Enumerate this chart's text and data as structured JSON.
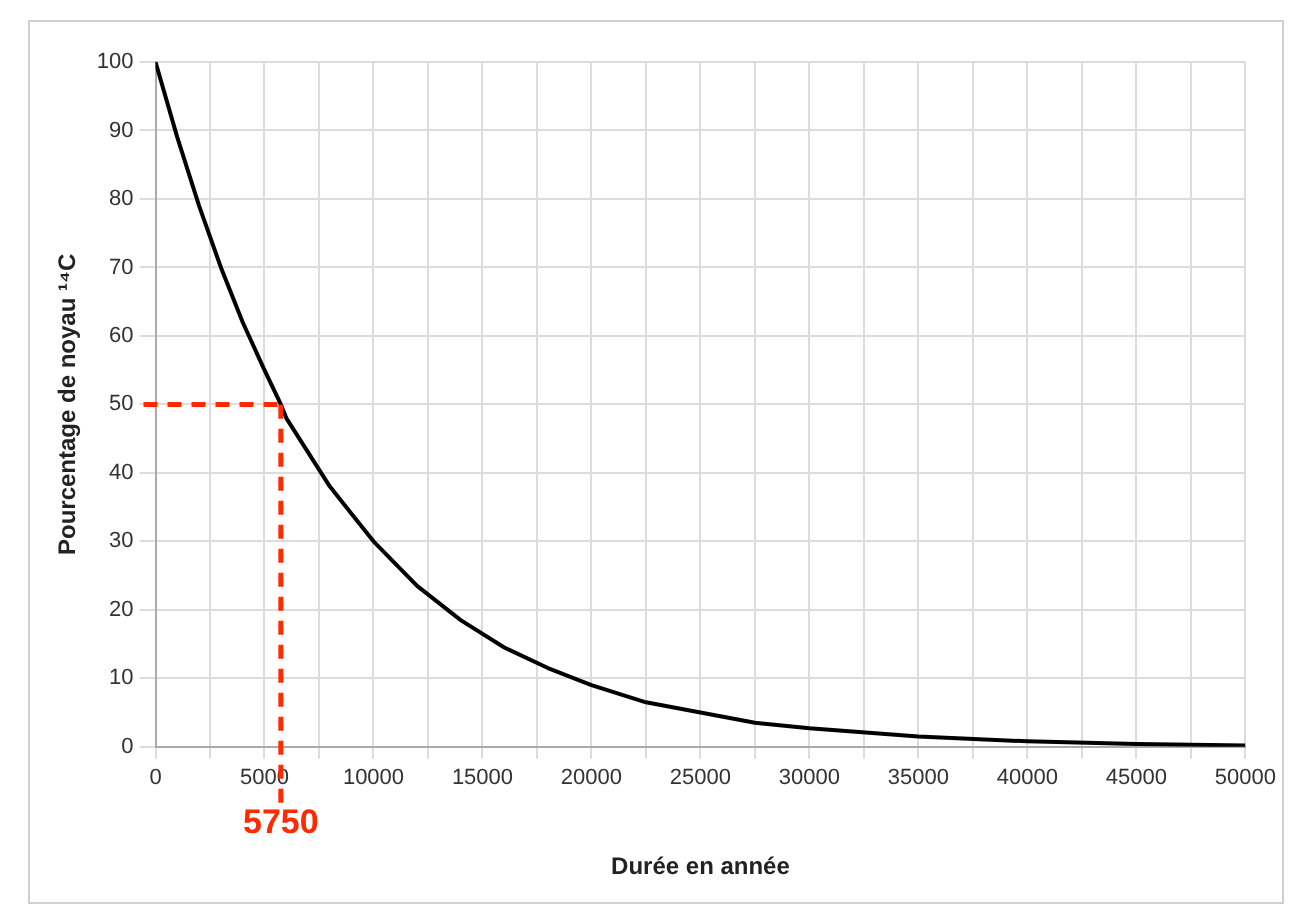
{
  "chart_data": {
    "type": "line",
    "xlabel": "Durée en année",
    "ylabel": "Pourcentage de noyau ¹⁴C",
    "x": [
      0,
      1000,
      2000,
      3000,
      4000,
      5000,
      5750,
      6000,
      7000,
      8000,
      9000,
      10000,
      12000,
      14000,
      16000,
      18000,
      20000,
      22500,
      25000,
      27500,
      30000,
      35000,
      40000,
      45000,
      50000
    ],
    "series": [
      {
        "color": "#000000",
        "values": [
          100,
          89,
          79,
          70,
          62,
          55,
          50,
          48,
          43,
          38,
          34,
          30,
          23.5,
          18.5,
          14.5,
          11.5,
          9,
          6.5,
          5,
          3.5,
          2.7,
          1.5,
          0.8,
          0.4,
          0.2
        ]
      }
    ],
    "xlim": [
      0,
      50000
    ],
    "xticks": [
      0,
      {
        "value": 2500,
        "label": null
      },
      5000,
      {
        "value": 7500,
        "label": null
      },
      10000,
      {
        "value": 12500,
        "label": null
      },
      15000,
      {
        "value": 17500,
        "label": null
      },
      20000,
      {
        "value": 22500,
        "label": null
      },
      25000,
      {
        "value": 27500,
        "label": null
      },
      30000,
      {
        "value": 32500,
        "label": null
      },
      35000,
      {
        "value": 37500,
        "label": null
      },
      40000,
      {
        "value": 42500,
        "label": null
      },
      45000,
      {
        "value": 47500,
        "label": null
      },
      50000
    ],
    "ylim": [
      0,
      100
    ],
    "yticks": [
      0,
      10,
      20,
      30,
      40,
      50,
      60,
      70,
      80,
      90,
      100
    ],
    "grid": true,
    "legend": false,
    "marker": "none",
    "line_style": "solid",
    "ref_lines": [
      {
        "axis": "x",
        "value": 5750,
        "label": "5750",
        "color": "#ff2a00",
        "line_style": "dashed"
      },
      {
        "axis": "y",
        "value": 50,
        "color": "#ff2a00",
        "line_style": "dashed"
      }
    ]
  }
}
